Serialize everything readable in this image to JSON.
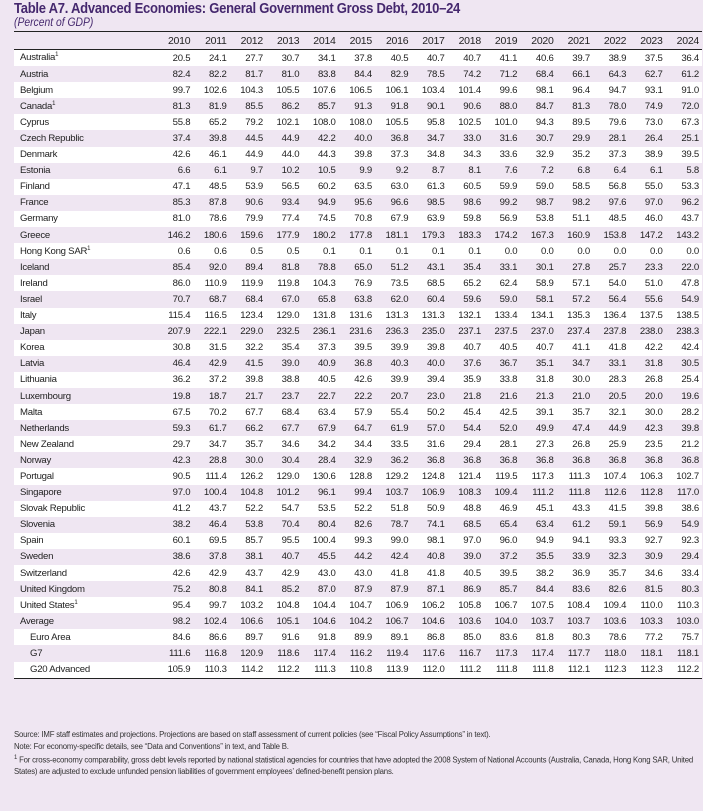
{
  "title": "Table A7. Advanced Economies: General Government Gross Debt, 2010–24",
  "subtitle": "(Percent of GDP)",
  "years": [
    "2010",
    "2011",
    "2012",
    "2013",
    "2014",
    "2015",
    "2016",
    "2017",
    "2018",
    "2019",
    "2020",
    "2021",
    "2022",
    "2023",
    "2024"
  ],
  "rows": [
    {
      "name": "Australia",
      "sup": "1",
      "values": [
        "20.5",
        "24.1",
        "27.7",
        "30.7",
        "34.1",
        "37.8",
        "40.5",
        "40.7",
        "40.7",
        "41.1",
        "40.6",
        "39.7",
        "38.9",
        "37.5",
        "36.4"
      ]
    },
    {
      "name": "Austria",
      "values": [
        "82.4",
        "82.2",
        "81.7",
        "81.0",
        "83.8",
        "84.4",
        "82.9",
        "78.5",
        "74.2",
        "71.2",
        "68.4",
        "66.1",
        "64.3",
        "62.7",
        "61.2"
      ]
    },
    {
      "name": "Belgium",
      "values": [
        "99.7",
        "102.6",
        "104.3",
        "105.5",
        "107.6",
        "106.5",
        "106.1",
        "103.4",
        "101.4",
        "99.6",
        "98.1",
        "96.4",
        "94.7",
        "93.1",
        "91.0"
      ]
    },
    {
      "name": "Canada",
      "sup": "1",
      "values": [
        "81.3",
        "81.9",
        "85.5",
        "86.2",
        "85.7",
        "91.3",
        "91.8",
        "90.1",
        "90.6",
        "88.0",
        "84.7",
        "81.3",
        "78.0",
        "74.9",
        "72.0"
      ]
    },
    {
      "name": "Cyprus",
      "values": [
        "55.8",
        "65.2",
        "79.2",
        "102.1",
        "108.0",
        "108.0",
        "105.5",
        "95.8",
        "102.5",
        "101.0",
        "94.3",
        "89.5",
        "79.6",
        "73.0",
        "67.3"
      ]
    },
    {
      "name": "Czech Republic",
      "values": [
        "37.4",
        "39.8",
        "44.5",
        "44.9",
        "42.2",
        "40.0",
        "36.8",
        "34.7",
        "33.0",
        "31.6",
        "30.7",
        "29.9",
        "28.1",
        "26.4",
        "25.1"
      ]
    },
    {
      "name": "Denmark",
      "values": [
        "42.6",
        "46.1",
        "44.9",
        "44.0",
        "44.3",
        "39.8",
        "37.3",
        "34.8",
        "34.3",
        "33.6",
        "32.9",
        "35.2",
        "37.3",
        "38.9",
        "39.5"
      ]
    },
    {
      "name": "Estonia",
      "values": [
        "6.6",
        "6.1",
        "9.7",
        "10.2",
        "10.5",
        "9.9",
        "9.2",
        "8.7",
        "8.1",
        "7.6",
        "7.2",
        "6.8",
        "6.4",
        "6.1",
        "5.8"
      ]
    },
    {
      "name": "Finland",
      "values": [
        "47.1",
        "48.5",
        "53.9",
        "56.5",
        "60.2",
        "63.5",
        "63.0",
        "61.3",
        "60.5",
        "59.9",
        "59.0",
        "58.5",
        "56.8",
        "55.0",
        "53.3"
      ]
    },
    {
      "name": "France",
      "values": [
        "85.3",
        "87.8",
        "90.6",
        "93.4",
        "94.9",
        "95.6",
        "96.6",
        "98.5",
        "98.6",
        "99.2",
        "98.7",
        "98.2",
        "97.6",
        "97.0",
        "96.2"
      ]
    },
    {
      "name": "Germany",
      "values": [
        "81.0",
        "78.6",
        "79.9",
        "77.4",
        "74.5",
        "70.8",
        "67.9",
        "63.9",
        "59.8",
        "56.9",
        "53.8",
        "51.1",
        "48.5",
        "46.0",
        "43.7"
      ]
    },
    {
      "name": "Greece",
      "values": [
        "146.2",
        "180.6",
        "159.6",
        "177.9",
        "180.2",
        "177.8",
        "181.1",
        "179.3",
        "183.3",
        "174.2",
        "167.3",
        "160.9",
        "153.8",
        "147.2",
        "143.2"
      ]
    },
    {
      "name": "Hong Kong SAR",
      "sup": "1",
      "values": [
        "0.6",
        "0.6",
        "0.5",
        "0.5",
        "0.1",
        "0.1",
        "0.1",
        "0.1",
        "0.1",
        "0.0",
        "0.0",
        "0.0",
        "0.0",
        "0.0",
        "0.0"
      ]
    },
    {
      "name": "Iceland",
      "values": [
        "85.4",
        "92.0",
        "89.4",
        "81.8",
        "78.8",
        "65.0",
        "51.2",
        "43.1",
        "35.4",
        "33.1",
        "30.1",
        "27.8",
        "25.7",
        "23.3",
        "22.0"
      ]
    },
    {
      "name": "Ireland",
      "values": [
        "86.0",
        "110.9",
        "119.9",
        "119.8",
        "104.3",
        "76.9",
        "73.5",
        "68.5",
        "65.2",
        "62.4",
        "58.9",
        "57.1",
        "54.0",
        "51.0",
        "47.8"
      ]
    },
    {
      "name": "Israel",
      "values": [
        "70.7",
        "68.7",
        "68.4",
        "67.0",
        "65.8",
        "63.8",
        "62.0",
        "60.4",
        "59.6",
        "59.0",
        "58.1",
        "57.2",
        "56.4",
        "55.6",
        "54.9"
      ]
    },
    {
      "name": "Italy",
      "values": [
        "115.4",
        "116.5",
        "123.4",
        "129.0",
        "131.8",
        "131.6",
        "131.3",
        "131.3",
        "132.1",
        "133.4",
        "134.1",
        "135.3",
        "136.4",
        "137.5",
        "138.5"
      ]
    },
    {
      "name": "Japan",
      "values": [
        "207.9",
        "222.1",
        "229.0",
        "232.5",
        "236.1",
        "231.6",
        "236.3",
        "235.0",
        "237.1",
        "237.5",
        "237.0",
        "237.4",
        "237.8",
        "238.0",
        "238.3"
      ]
    },
    {
      "name": "Korea",
      "values": [
        "30.8",
        "31.5",
        "32.2",
        "35.4",
        "37.3",
        "39.5",
        "39.9",
        "39.8",
        "40.7",
        "40.5",
        "40.7",
        "41.1",
        "41.8",
        "42.2",
        "42.4"
      ]
    },
    {
      "name": "Latvia",
      "values": [
        "46.4",
        "42.9",
        "41.5",
        "39.0",
        "40.9",
        "36.8",
        "40.3",
        "40.0",
        "37.6",
        "36.7",
        "35.1",
        "34.7",
        "33.1",
        "31.8",
        "30.5"
      ]
    },
    {
      "name": "Lithuania",
      "values": [
        "36.2",
        "37.2",
        "39.8",
        "38.8",
        "40.5",
        "42.6",
        "39.9",
        "39.4",
        "35.9",
        "33.8",
        "31.8",
        "30.0",
        "28.3",
        "26.8",
        "25.4"
      ]
    },
    {
      "name": "Luxembourg",
      "values": [
        "19.8",
        "18.7",
        "21.7",
        "23.7",
        "22.7",
        "22.2",
        "20.7",
        "23.0",
        "21.8",
        "21.6",
        "21.3",
        "21.0",
        "20.5",
        "20.0",
        "19.6"
      ]
    },
    {
      "name": "Malta",
      "values": [
        "67.5",
        "70.2",
        "67.7",
        "68.4",
        "63.4",
        "57.9",
        "55.4",
        "50.2",
        "45.4",
        "42.5",
        "39.1",
        "35.7",
        "32.1",
        "30.0",
        "28.2"
      ]
    },
    {
      "name": "Netherlands",
      "values": [
        "59.3",
        "61.7",
        "66.2",
        "67.7",
        "67.9",
        "64.7",
        "61.9",
        "57.0",
        "54.4",
        "52.0",
        "49.9",
        "47.4",
        "44.9",
        "42.3",
        "39.8"
      ]
    },
    {
      "name": "New Zealand",
      "values": [
        "29.7",
        "34.7",
        "35.7",
        "34.6",
        "34.2",
        "34.4",
        "33.5",
        "31.6",
        "29.4",
        "28.1",
        "27.3",
        "26.8",
        "25.9",
        "23.5",
        "21.2"
      ]
    },
    {
      "name": "Norway",
      "values": [
        "42.3",
        "28.8",
        "30.0",
        "30.4",
        "28.4",
        "32.9",
        "36.2",
        "36.8",
        "36.8",
        "36.8",
        "36.8",
        "36.8",
        "36.8",
        "36.8",
        "36.8"
      ]
    },
    {
      "name": "Portugal",
      "values": [
        "90.5",
        "111.4",
        "126.2",
        "129.0",
        "130.6",
        "128.8",
        "129.2",
        "124.8",
        "121.4",
        "119.5",
        "117.3",
        "111.3",
        "107.4",
        "106.3",
        "102.7"
      ]
    },
    {
      "name": "Singapore",
      "values": [
        "97.0",
        "100.4",
        "104.8",
        "101.2",
        "96.1",
        "99.4",
        "103.7",
        "106.9",
        "108.3",
        "109.4",
        "111.2",
        "111.8",
        "112.6",
        "112.8",
        "117.0"
      ]
    },
    {
      "name": "Slovak Republic",
      "values": [
        "41.2",
        "43.7",
        "52.2",
        "54.7",
        "53.5",
        "52.2",
        "51.8",
        "50.9",
        "48.8",
        "46.9",
        "45.1",
        "43.3",
        "41.5",
        "39.8",
        "38.6"
      ]
    },
    {
      "name": "Slovenia",
      "values": [
        "38.2",
        "46.4",
        "53.8",
        "70.4",
        "80.4",
        "82.6",
        "78.7",
        "74.1",
        "68.5",
        "65.4",
        "63.4",
        "61.2",
        "59.1",
        "56.9",
        "54.9"
      ]
    },
    {
      "name": "Spain",
      "values": [
        "60.1",
        "69.5",
        "85.7",
        "95.5",
        "100.4",
        "99.3",
        "99.0",
        "98.1",
        "97.0",
        "96.0",
        "94.9",
        "94.1",
        "93.3",
        "92.7",
        "92.3"
      ]
    },
    {
      "name": "Sweden",
      "values": [
        "38.6",
        "37.8",
        "38.1",
        "40.7",
        "45.5",
        "44.2",
        "42.4",
        "40.8",
        "39.0",
        "37.2",
        "35.5",
        "33.9",
        "32.3",
        "30.9",
        "29.4"
      ]
    },
    {
      "name": "Switzerland",
      "values": [
        "42.6",
        "42.9",
        "43.7",
        "42.9",
        "43.0",
        "43.0",
        "41.8",
        "41.8",
        "40.5",
        "39.5",
        "38.2",
        "36.9",
        "35.7",
        "34.6",
        "33.4"
      ]
    },
    {
      "name": "United Kingdom",
      "values": [
        "75.2",
        "80.8",
        "84.1",
        "85.2",
        "87.0",
        "87.9",
        "87.9",
        "87.1",
        "86.9",
        "85.7",
        "84.4",
        "83.6",
        "82.6",
        "81.5",
        "80.3"
      ]
    },
    {
      "name": "United States",
      "sup": "1",
      "values": [
        "95.4",
        "99.7",
        "103.2",
        "104.8",
        "104.4",
        "104.7",
        "106.9",
        "106.2",
        "105.8",
        "106.7",
        "107.5",
        "108.4",
        "109.4",
        "110.0",
        "110.3"
      ]
    },
    {
      "name": "Average",
      "values": [
        "98.2",
        "102.4",
        "106.6",
        "105.1",
        "104.6",
        "104.2",
        "106.7",
        "104.6",
        "103.6",
        "104.0",
        "103.7",
        "103.7",
        "103.6",
        "103.3",
        "103.0"
      ]
    },
    {
      "name": "Euro Area",
      "indent": true,
      "values": [
        "84.6",
        "86.6",
        "89.7",
        "91.6",
        "91.8",
        "89.9",
        "89.1",
        "86.8",
        "85.0",
        "83.6",
        "81.8",
        "80.3",
        "78.6",
        "77.2",
        "75.7"
      ]
    },
    {
      "name": "G7",
      "indent": true,
      "values": [
        "111.6",
        "116.8",
        "120.9",
        "118.6",
        "117.4",
        "116.2",
        "119.4",
        "117.6",
        "116.7",
        "117.3",
        "117.4",
        "117.7",
        "118.0",
        "118.1",
        "118.1"
      ]
    },
    {
      "name": "G20 Advanced",
      "indent": true,
      "values": [
        "105.9",
        "110.3",
        "114.2",
        "112.2",
        "111.3",
        "110.8",
        "113.9",
        "112.0",
        "111.2",
        "111.8",
        "111.8",
        "112.1",
        "112.3",
        "112.3",
        "112.2"
      ]
    }
  ],
  "notes": {
    "source": "Source: IMF staff estimates and projections. Projections are based on staff assessment of current policies (see “Fiscal Policy Assumptions” in text).",
    "note": "Note: For economy-specific details, see “Data and Conventions” in text, and Table B.",
    "footnote_mark": "1",
    "footnote": " For cross-economy comparability, gross debt levels reported by national statistical agencies for countries that have adopted the 2008 System of National Accounts (Australia, Canada, Hong Kong SAR, United States) are adjusted to exclude unfunded pension liabilities of government employees’ defined-benefit pension plans."
  }
}
